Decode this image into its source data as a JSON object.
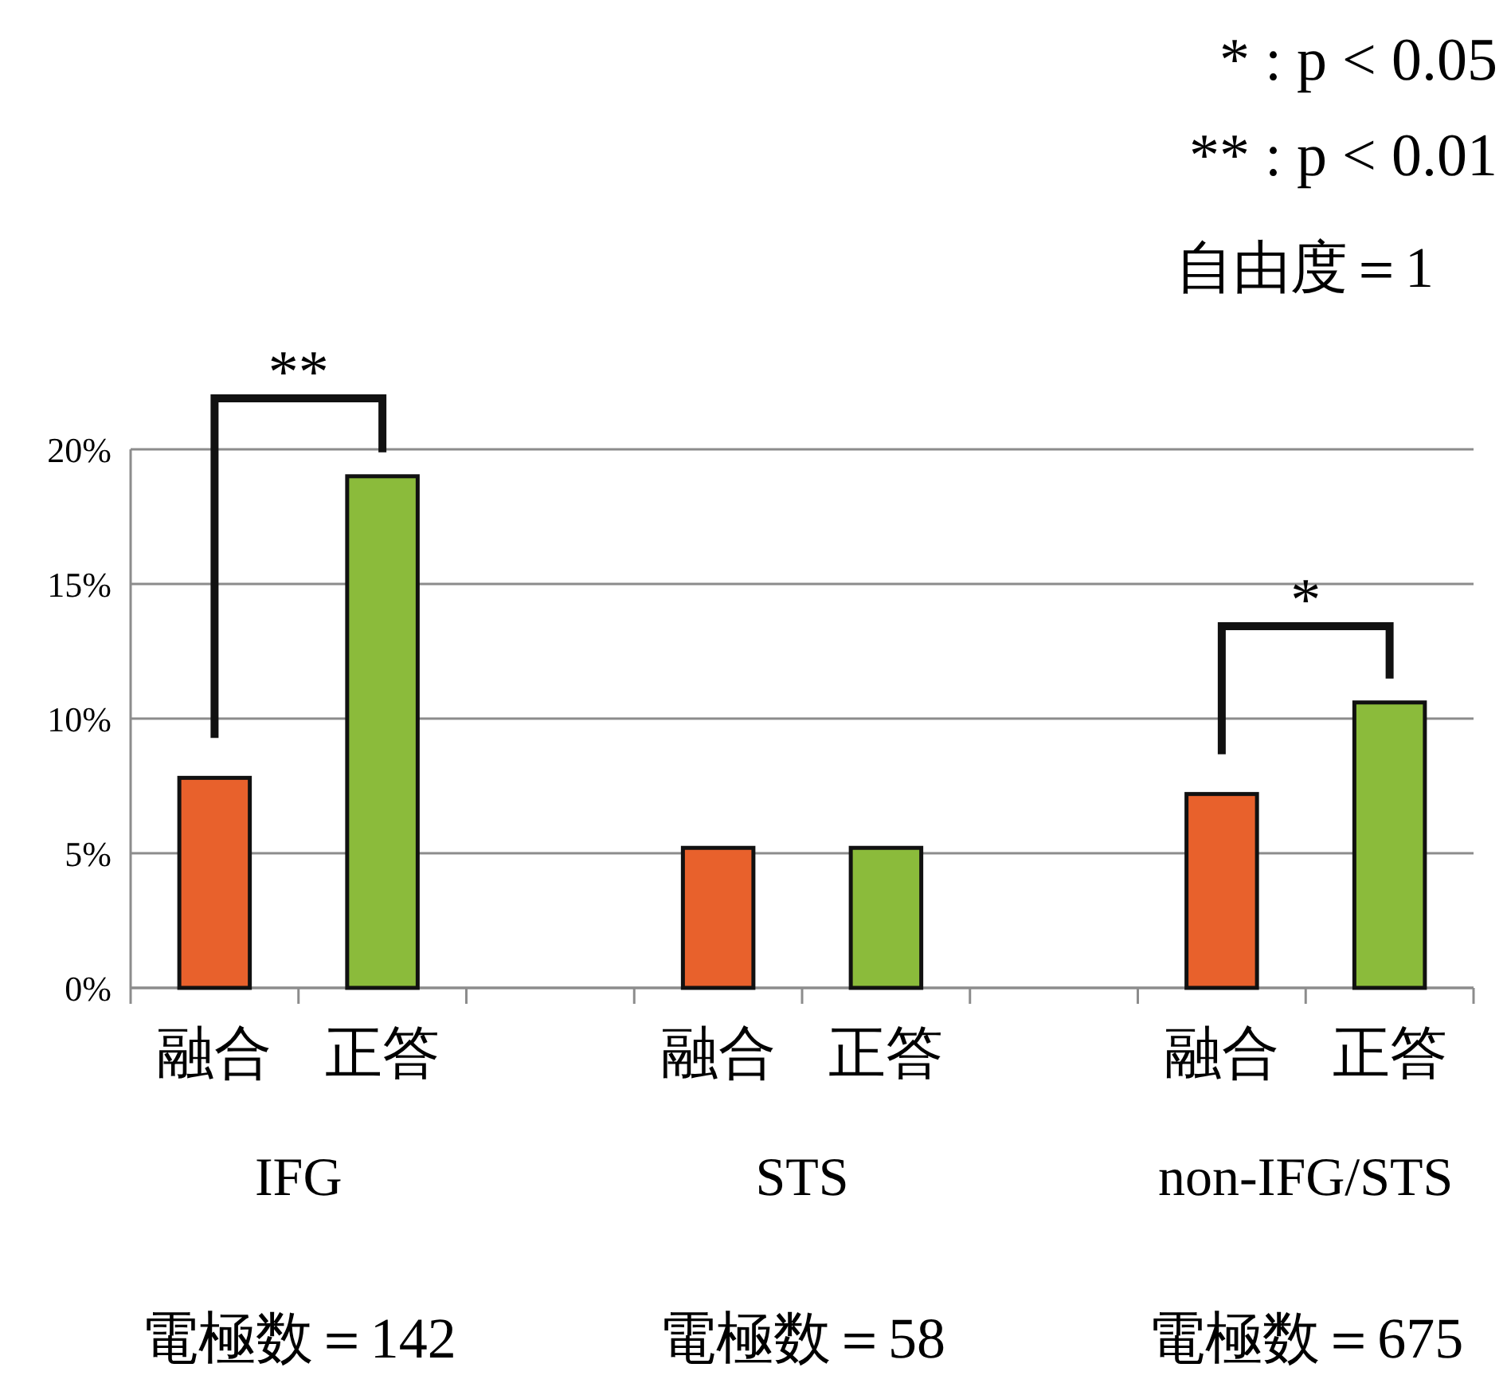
{
  "chart_data": {
    "type": "bar",
    "categories": [
      "融合",
      "正答",
      null,
      "融合",
      "正答",
      null,
      "融合",
      "正答"
    ],
    "values": [
      7.8,
      19.0,
      null,
      5.2,
      5.2,
      null,
      7.2,
      10.6
    ],
    "colors": [
      "#e8612c",
      "#8bbb3b",
      null,
      "#e8612c",
      "#8bbb3b",
      null,
      "#e8612c",
      "#8bbb3b"
    ],
    "ylim": [
      0,
      20
    ],
    "yticks": [
      {
        "value": 0,
        "label": "0%"
      },
      {
        "value": 5,
        "label": "5%"
      },
      {
        "value": 10,
        "label": "10%"
      },
      {
        "value": 15,
        "label": "15%"
      },
      {
        "value": 20,
        "label": "20%"
      }
    ],
    "grid": "y",
    "annotations": [
      "*  : p < 0.05",
      "** : p < 0.01",
      "自由度＝1",
      "IFG",
      "STS",
      "non-IFG/STS",
      "電極数＝142",
      "電極数＝58",
      "電極数＝675",
      "**",
      "*"
    ]
  }
}
